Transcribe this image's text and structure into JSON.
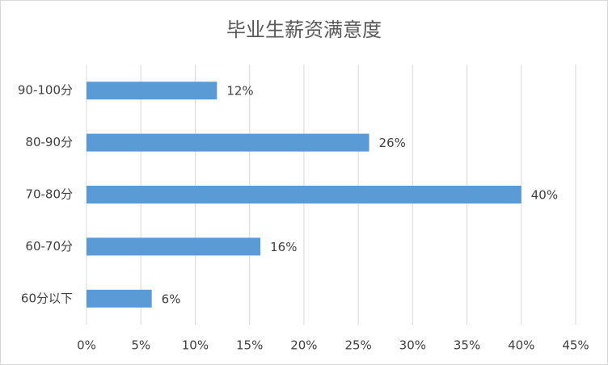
{
  "chart_data": {
    "type": "hbar",
    "title": "毕业生薪资满意度",
    "categories": [
      "90-100分",
      "80-90分",
      "70-80分",
      "60-70分",
      "60分以下"
    ],
    "values": [
      12,
      26,
      40,
      16,
      6
    ],
    "value_labels": [
      "12%",
      "26%",
      "40%",
      "16%",
      "6%"
    ],
    "color": "#5b9bd5",
    "xlim": [
      0,
      45
    ],
    "xticks": [
      {
        "value": 0,
        "label": "0%"
      },
      {
        "value": 5,
        "label": "5%"
      },
      {
        "value": 10,
        "label": "10%"
      },
      {
        "value": 15,
        "label": "15%"
      },
      {
        "value": 20,
        "label": "20%"
      },
      {
        "value": 25,
        "label": "25%"
      },
      {
        "value": 30,
        "label": "30%"
      },
      {
        "value": 35,
        "label": "35%"
      },
      {
        "value": 40,
        "label": "40%"
      },
      {
        "value": 45,
        "label": "45%"
      }
    ],
    "grid": true
  }
}
